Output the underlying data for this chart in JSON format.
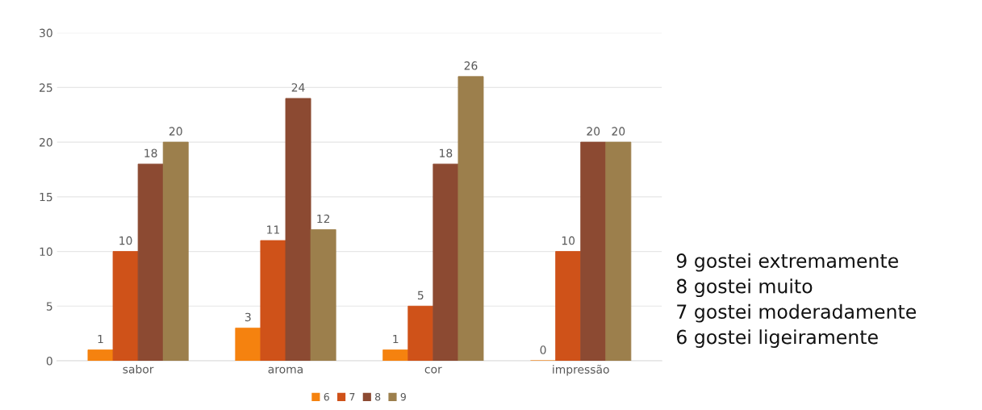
{
  "chart_data": {
    "type": "bar",
    "categories": [
      "sabor",
      "aroma",
      "cor",
      "impressão"
    ],
    "series": [
      {
        "name": "6",
        "color": "#f5820f",
        "values": [
          1,
          3,
          1,
          0
        ]
      },
      {
        "name": "7",
        "color": "#cf5219",
        "values": [
          10,
          11,
          5,
          10
        ]
      },
      {
        "name": "8",
        "color": "#8c4a32",
        "values": [
          18,
          24,
          18,
          20
        ]
      },
      {
        "name": "9",
        "color": "#9c7f4c",
        "values": [
          20,
          12,
          26,
          20
        ]
      }
    ],
    "ylim": [
      0,
      30
    ],
    "yticks": [
      0,
      5,
      10,
      15,
      20,
      25,
      30
    ],
    "grid": "y",
    "legend": "bottom",
    "data_labels": true,
    "annotations": [
      "9 gostei extremamente",
      "8 gostei muito",
      "7 gostei moderadamente",
      "6 gostei ligeiramente"
    ]
  }
}
